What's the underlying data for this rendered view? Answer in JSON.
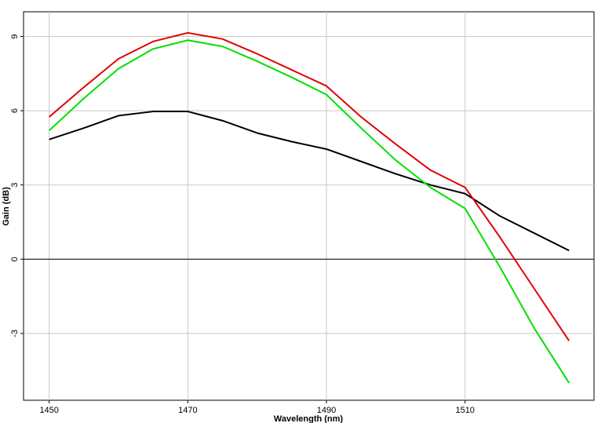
{
  "chart_data": {
    "type": "line",
    "x_label": "Wavelength (nm)",
    "y_label": "Gain (dB)",
    "x": [
      1450,
      1455,
      1460,
      1465,
      1470,
      1475,
      1480,
      1485,
      1490,
      1495,
      1500,
      1505,
      1510,
      1515,
      1520,
      1525
    ],
    "series": [
      {
        "color": "#000000",
        "values": [
          4.84,
          5.3,
          5.8,
          5.97,
          5.97,
          5.6,
          5.1,
          4.75,
          4.45,
          3.95,
          3.45,
          3.0,
          2.65,
          1.75,
          1.05,
          0.35
        ]
      },
      {
        "color": "#e00000",
        "values": [
          5.75,
          6.95,
          8.1,
          8.8,
          9.15,
          8.9,
          8.3,
          7.65,
          7.0,
          5.75,
          4.65,
          3.6,
          2.9,
          0.9,
          -1.2,
          -3.3
        ]
      },
      {
        "color": "#00e000",
        "values": [
          5.2,
          6.5,
          7.7,
          8.5,
          8.85,
          8.6,
          8.0,
          7.35,
          6.65,
          5.3,
          4.0,
          2.9,
          2.05,
          -0.3,
          -2.8,
          -5.0
        ]
      }
    ],
    "xlim": [
      1446.3,
      1528.6
    ],
    "ylim": [
      -5.7,
      10.0
    ],
    "xticks": [
      1450,
      1470,
      1490,
      1510
    ],
    "yticks": [
      -3,
      0,
      3,
      6,
      9
    ],
    "grid": true
  }
}
